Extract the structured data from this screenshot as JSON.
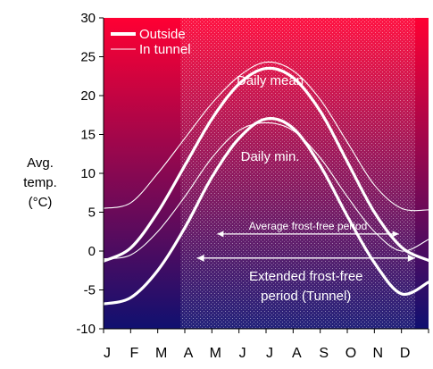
{
  "chart_data": {
    "type": "line",
    "ylabel_lines": [
      "Avg.",
      "temp.",
      "(°C)"
    ],
    "months": [
      "J",
      "F",
      "M",
      "A",
      "M",
      "J",
      "J",
      "A",
      "S",
      "O",
      "N",
      "D"
    ],
    "ylim": [
      -10,
      30
    ],
    "yticks": [
      -10,
      -5,
      0,
      5,
      10,
      15,
      20,
      25,
      30
    ],
    "legend": {
      "placement": "top-left",
      "entries": [
        {
          "label": "Outside",
          "style": "thick"
        },
        {
          "label": "In tunnel",
          "style": "thin"
        }
      ]
    },
    "annotations": {
      "daily_mean": "Daily mean",
      "daily_min": "Daily min.",
      "average_frost_free": "Average frost-free period",
      "extended_frost_free": [
        "Extended frost-free",
        "period (Tunnel)"
      ]
    },
    "periods": {
      "average_frost_free": {
        "start_month": 4.2,
        "end_month": 10.9
      },
      "extended_frost_free": {
        "start_month": 3.45,
        "end_month": 11.5
      }
    },
    "series": [
      {
        "name": "Outside",
        "measure": "Daily mean",
        "month": [
          0,
          1,
          2,
          3,
          4,
          5,
          6,
          7,
          8,
          9,
          10,
          11,
          12
        ],
        "values": [
          -1.3,
          0.4,
          5.0,
          11.0,
          17.0,
          21.5,
          23.5,
          22.3,
          18.0,
          11.5,
          5.0,
          0.5,
          -1.2
        ]
      },
      {
        "name": "In tunnel",
        "measure": "Daily mean",
        "month": [
          0,
          1,
          2,
          3,
          4,
          5,
          6,
          7,
          8,
          9,
          10,
          11,
          12
        ],
        "values": [
          5.5,
          6.2,
          10.0,
          14.5,
          19.0,
          22.5,
          24.3,
          23.2,
          19.5,
          14.0,
          8.5,
          5.5,
          5.3
        ]
      },
      {
        "name": "Outside",
        "measure": "Daily min.",
        "month": [
          0,
          1,
          2,
          3,
          4,
          5,
          6,
          7,
          8,
          9,
          10,
          11,
          12
        ],
        "values": [
          -6.8,
          -6.0,
          -2.5,
          3.0,
          9.5,
          14.5,
          17.0,
          15.8,
          11.0,
          4.5,
          -1.5,
          -5.5,
          -4.0
        ]
      },
      {
        "name": "In tunnel",
        "measure": "Daily min.",
        "month": [
          0,
          1,
          2,
          3,
          4,
          5,
          6,
          7,
          8,
          9,
          10,
          11,
          12
        ],
        "values": [
          -1.0,
          -0.5,
          2.5,
          7.0,
          12.0,
          15.5,
          16.5,
          15.5,
          12.0,
          7.0,
          2.5,
          0.0,
          1.5
        ]
      }
    ],
    "colors": {
      "gradient_top": "#ff0033",
      "gradient_bottom": "#101070",
      "line": "#ffffff",
      "axis": "#000000"
    },
    "grid": false
  }
}
